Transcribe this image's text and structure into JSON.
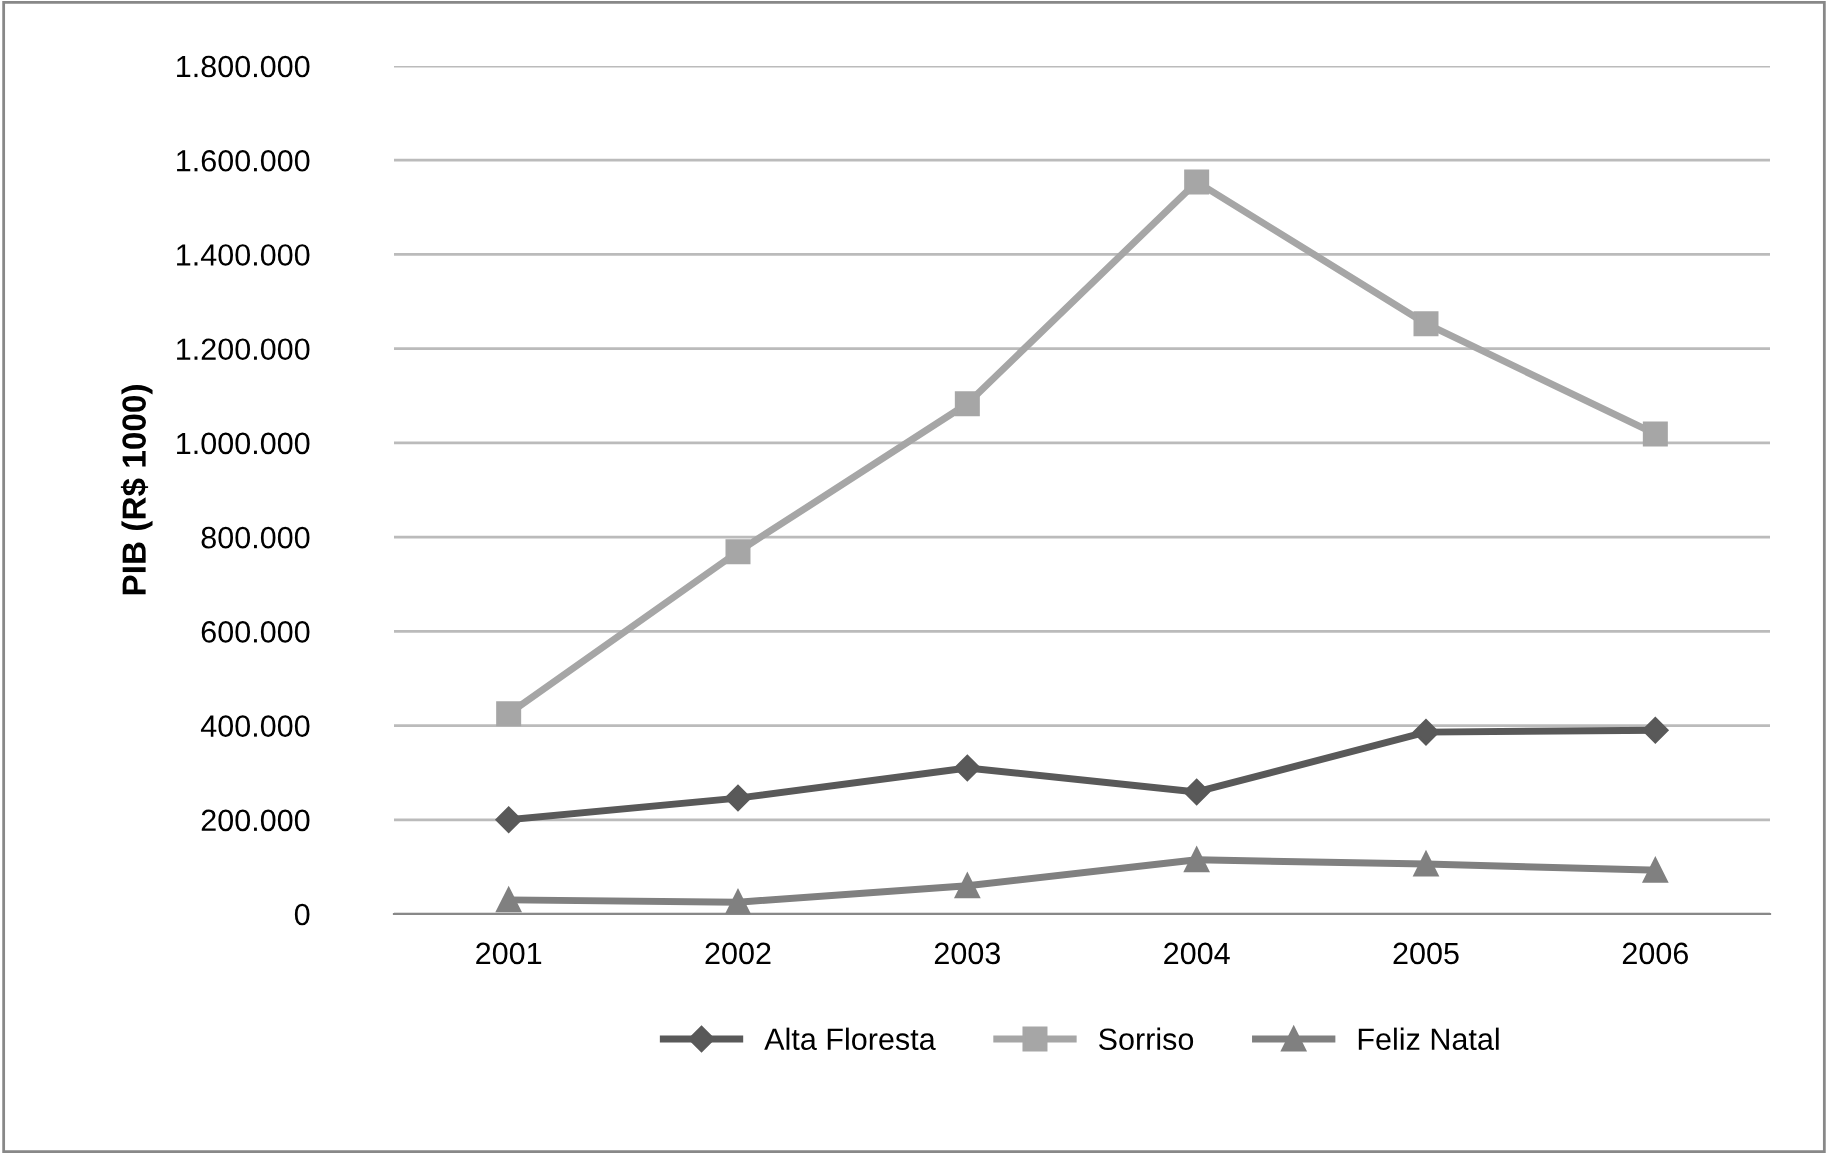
{
  "chart_data": {
    "type": "line",
    "ylabel": "PIB (R$ 1000)",
    "categories": [
      "2001",
      "2002",
      "2003",
      "2004",
      "2005",
      "2006"
    ],
    "series": [
      {
        "name": "Alta Floresta",
        "color": "#595959",
        "marker": "diamond",
        "values": [
          200000,
          246000,
          310000,
          259000,
          386000,
          390000
        ]
      },
      {
        "name": "Sorriso",
        "color": "#a6a6a6",
        "marker": "square",
        "values": [
          425000,
          769000,
          1083000,
          1554000,
          1253000,
          1019000
        ]
      },
      {
        "name": "Feliz Natal",
        "color": "#808080",
        "marker": "triangle",
        "values": [
          30000,
          25000,
          60000,
          115000,
          106000,
          93000
        ]
      }
    ],
    "ylim": [
      0,
      1800000
    ],
    "yticks": [
      {
        "value": 0,
        "label": "0"
      },
      {
        "value": 200000,
        "label": "200.000"
      },
      {
        "value": 400000,
        "label": "400.000"
      },
      {
        "value": 600000,
        "label": "600.000"
      },
      {
        "value": 800000,
        "label": "800.000"
      },
      {
        "value": 1000000,
        "label": "1.000.000"
      },
      {
        "value": 1200000,
        "label": "1.200.000"
      },
      {
        "value": 1400000,
        "label": "1.400.000"
      },
      {
        "value": 1600000,
        "label": "1.600.000"
      },
      {
        "value": 1800000,
        "label": "1.800.000"
      }
    ],
    "grid": "y",
    "legend": "bottom",
    "line_style": "solid"
  }
}
